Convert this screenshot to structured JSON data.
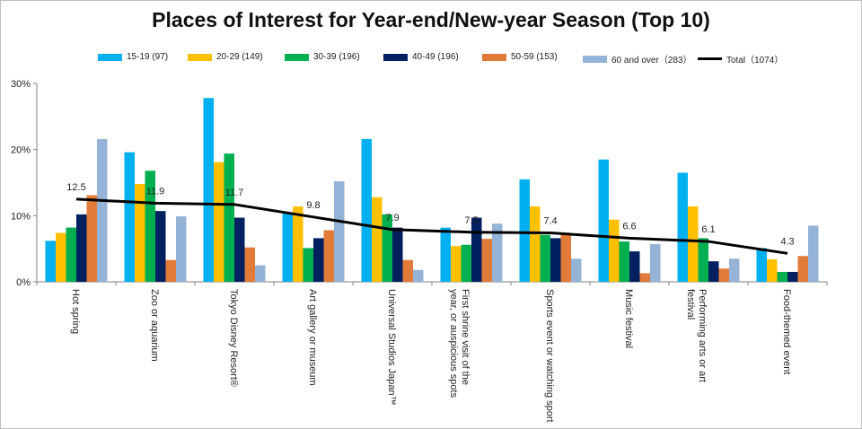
{
  "chart_data": {
    "type": "bar",
    "title": "Places of Interest for Year-end/New-year Season (Top 10)",
    "xlabel": "",
    "ylabel": "",
    "ylim": [
      0,
      30
    ],
    "yticks": [
      "0%",
      "10%",
      "20%",
      "30%"
    ],
    "grid": false,
    "legend_position": "top",
    "categories": [
      "Hot spring",
      "Zoo or aquarium",
      "Tokyo Disney Resort®",
      "Art gallery or museum",
      "Universal Studios Japan™",
      "First shrine visit of the year, or auspicious spots",
      "Sports event or watching sport",
      "Music festival",
      "Performing arts or art festival",
      "Food-themed event"
    ],
    "series": [
      {
        "name": "15-19 (97)",
        "color": "#00b0f0",
        "values": [
          6.2,
          19.6,
          27.8,
          10.3,
          21.6,
          8.2,
          15.5,
          18.5,
          16.5,
          5.1
        ]
      },
      {
        "name": "20-29 (149)",
        "color": "#ffc000",
        "values": [
          7.4,
          14.8,
          18.1,
          11.4,
          12.8,
          5.4,
          11.4,
          9.4,
          11.4,
          3.4
        ]
      },
      {
        "name": "30-39 (196)",
        "color": "#00b050",
        "values": [
          8.2,
          16.8,
          19.4,
          5.1,
          10.2,
          5.6,
          7.1,
          6.1,
          6.6,
          1.5
        ]
      },
      {
        "name": "40-49 (196)",
        "color": "#002060",
        "values": [
          10.2,
          10.7,
          9.7,
          6.6,
          8.2,
          9.7,
          6.6,
          4.6,
          3.1,
          1.5
        ]
      },
      {
        "name": "50-59 (153)",
        "color": "#e07b39",
        "values": [
          13.1,
          3.3,
          5.2,
          7.8,
          3.3,
          6.5,
          7.2,
          1.3,
          2.0,
          3.9
        ]
      },
      {
        "name": "60 and over（283）",
        "color": "#95b3d7",
        "values": [
          21.6,
          9.9,
          2.5,
          15.2,
          1.8,
          8.8,
          3.5,
          5.7,
          3.5,
          8.5
        ]
      }
    ],
    "line_series": {
      "name": "Total（1074）",
      "color": "#000000",
      "values": [
        12.5,
        11.9,
        11.7,
        9.8,
        7.9,
        7.5,
        7.4,
        6.6,
        6.1,
        4.3
      ],
      "labels": [
        "12.5",
        "11.9",
        "11.7",
        "9.8",
        "7.9",
        "7.5",
        "7.4",
        "6.6",
        "6.1",
        "4.3"
      ]
    }
  }
}
